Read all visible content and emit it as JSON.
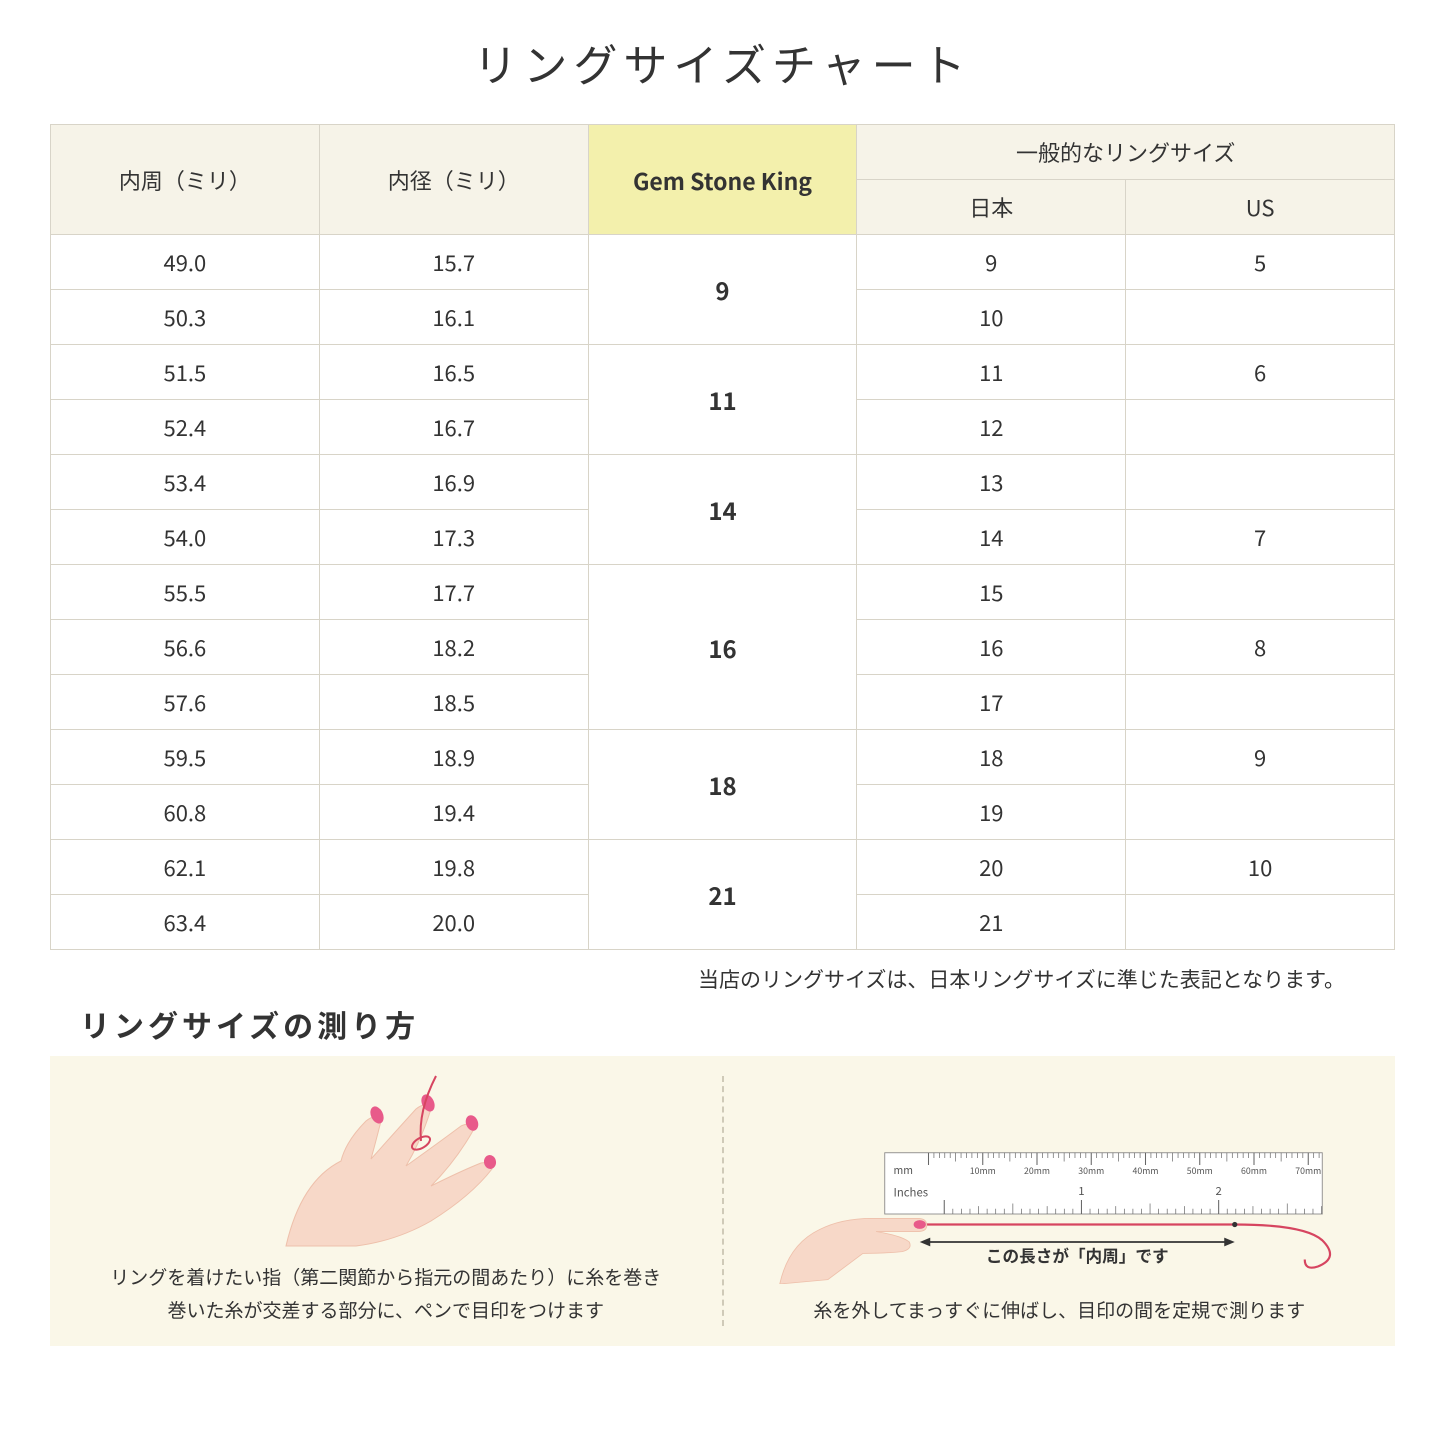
{
  "title": "リングサイズチャート",
  "table": {
    "headers": {
      "circumference": "内周（ミリ）",
      "diameter": "内径（ミリ）",
      "gem": "Gem Stone King",
      "common_group": "一般的なリングサイズ",
      "japan": "日本",
      "us": "US"
    },
    "groups": [
      {
        "gem": "9",
        "rows": [
          {
            "circ": "49.0",
            "dia": "15.7",
            "jp": "9",
            "us": "5"
          },
          {
            "circ": "50.3",
            "dia": "16.1",
            "jp": "10",
            "us": ""
          }
        ]
      },
      {
        "gem": "11",
        "rows": [
          {
            "circ": "51.5",
            "dia": "16.5",
            "jp": "11",
            "us": "6"
          },
          {
            "circ": "52.4",
            "dia": "16.7",
            "jp": "12",
            "us": ""
          }
        ]
      },
      {
        "gem": "14",
        "rows": [
          {
            "circ": "53.4",
            "dia": "16.9",
            "jp": "13",
            "us": ""
          },
          {
            "circ": "54.0",
            "dia": "17.3",
            "jp": "14",
            "us": "7"
          }
        ]
      },
      {
        "gem": "16",
        "rows": [
          {
            "circ": "55.5",
            "dia": "17.7",
            "jp": "15",
            "us": ""
          },
          {
            "circ": "56.6",
            "dia": "18.2",
            "jp": "16",
            "us": "8"
          },
          {
            "circ": "57.6",
            "dia": "18.5",
            "jp": "17",
            "us": ""
          }
        ]
      },
      {
        "gem": "18",
        "rows": [
          {
            "circ": "59.5",
            "dia": "18.9",
            "jp": "18",
            "us": "9"
          },
          {
            "circ": "60.8",
            "dia": "19.4",
            "jp": "19",
            "us": ""
          }
        ]
      },
      {
        "gem": "21",
        "rows": [
          {
            "circ": "62.1",
            "dia": "19.8",
            "jp": "20",
            "us": "10"
          },
          {
            "circ": "63.4",
            "dia": "20.0",
            "jp": "21",
            "us": ""
          }
        ]
      }
    ],
    "colors": {
      "header_bg": "#f6f3e8",
      "gem_header_bg": "#f3f0ac",
      "border": "#d8d4c8"
    }
  },
  "note": "当店のリングサイズは、日本リングサイズに準じた表記となります。",
  "howto": {
    "title": "リングサイズの測り方",
    "left_caption": "リングを着けたい指（第二関節から指元の間あたり）に糸を巻き\n巻いた糸が交差する部分に、ペンで目印をつけます",
    "right_caption": "糸を外してまっすぐに伸ばし、目印の間を定規で測ります",
    "measure_label": "この長さが「内周」です",
    "ruler": {
      "mm_label": "mm",
      "inches_label": "Inches",
      "mm_ticks": [
        "10mm",
        "20mm",
        "30mm",
        "40mm",
        "50mm",
        "60mm",
        "70mm"
      ],
      "inch_majors": [
        "1",
        "2"
      ]
    },
    "colors": {
      "panel_bg": "#faf7e8",
      "skin": "#f7d8c8",
      "skin_dark": "#eec0ab",
      "nail": "#e85a8a",
      "thread": "#d64560",
      "ruler_body": "#ffffff",
      "ruler_edge": "#888"
    }
  }
}
